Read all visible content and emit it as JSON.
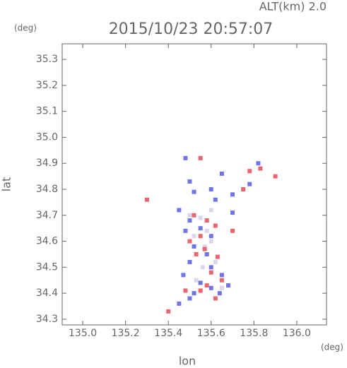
{
  "chart_data": {
    "type": "scatter",
    "title": "2015/10/23 20:57:07",
    "subtitle": "ALT(km) 2.0",
    "y_unit": "(deg)",
    "x_unit": "(deg)",
    "xlabel": "lon",
    "ylabel": "lat",
    "xlim": [
      134.904,
      136.139
    ],
    "ylim": [
      34.278,
      35.36
    ],
    "xticks": [
      {
        "value": 135,
        "label": "135.0"
      },
      135.2,
      135.4,
      135.6,
      135.8,
      {
        "value": 136,
        "label": "136.0"
      }
    ],
    "yticks": [
      34.3,
      34.4,
      34.5,
      34.6,
      34.7,
      34.8,
      34.9,
      {
        "value": 35,
        "label": "35.0"
      },
      35.1,
      35.2,
      35.3
    ],
    "series": [
      {
        "color": "#d9d6ee",
        "x": [
          135.5,
          135.55,
          135.6,
          135.58,
          135.62,
          135.56,
          135.65,
          135.53,
          135.6,
          135.52,
          135.57
        ],
        "y": [
          34.7,
          34.69,
          34.6,
          34.64,
          34.52,
          34.5,
          34.42,
          34.45,
          34.72,
          34.62,
          34.58
        ]
      },
      {
        "color": "#6f74e8",
        "x": [
          135.48,
          135.5,
          135.52,
          135.6,
          135.65,
          135.7,
          135.62,
          135.45,
          135.5,
          135.55,
          135.48,
          135.6,
          135.52,
          135.58,
          135.5,
          135.6,
          135.65,
          135.55,
          135.68,
          135.6,
          135.52,
          135.5,
          135.45,
          135.64,
          135.82,
          135.78,
          135.47,
          135.7
        ],
        "y": [
          34.92,
          34.83,
          34.79,
          34.8,
          34.86,
          34.78,
          34.76,
          34.72,
          34.68,
          34.65,
          34.64,
          34.62,
          34.58,
          34.55,
          34.52,
          34.5,
          34.47,
          34.44,
          34.43,
          34.42,
          34.4,
          34.38,
          34.36,
          34.4,
          34.9,
          34.82,
          34.47,
          34.71
        ]
      },
      {
        "color": "#ea6570",
        "x": [
          135.3,
          135.55,
          135.83,
          135.78,
          135.9,
          135.75,
          135.52,
          135.58,
          135.62,
          135.55,
          135.5,
          135.57,
          135.53,
          135.63,
          135.6,
          135.65,
          135.58,
          135.48,
          135.55,
          135.4,
          135.62,
          135.7
        ],
        "y": [
          34.76,
          34.92,
          34.88,
          34.87,
          34.85,
          34.8,
          34.7,
          34.68,
          34.66,
          34.62,
          34.6,
          34.57,
          34.55,
          34.54,
          34.48,
          34.45,
          34.43,
          34.41,
          34.41,
          34.33,
          34.38,
          34.64
        ]
      }
    ]
  }
}
